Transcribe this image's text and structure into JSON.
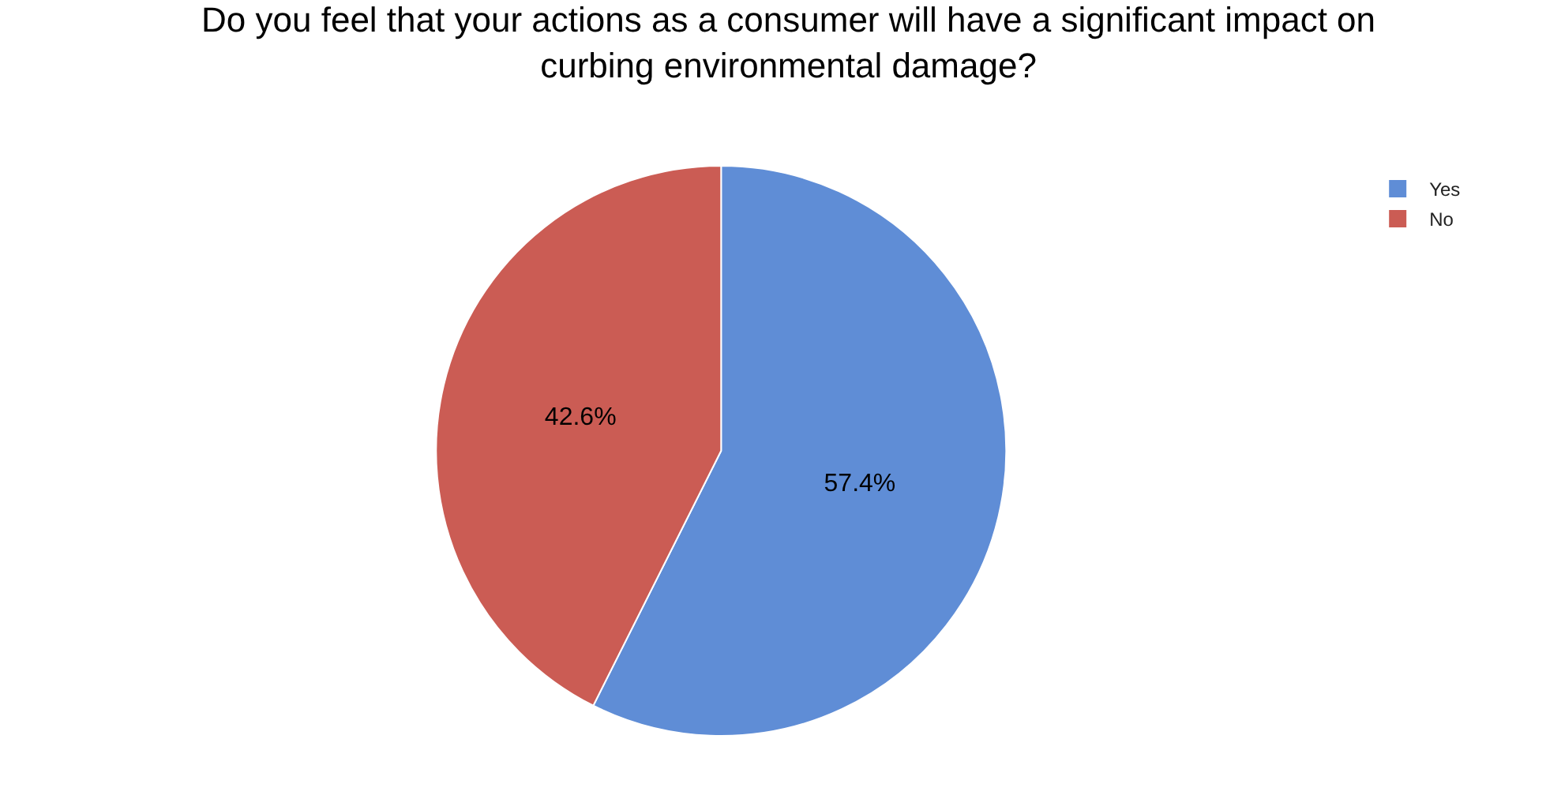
{
  "chart_data": {
    "type": "pie",
    "title": "Do you feel that your actions as a consumer will have a significant impact on curbing environmental damage?",
    "categories": [
      "Yes",
      "No"
    ],
    "values": [
      57.4,
      42.6
    ],
    "colors": [
      "#5f8dd6",
      "#cb5c54"
    ],
    "value_labels": [
      "57.4%",
      "42.6%"
    ],
    "legend": "top right"
  }
}
